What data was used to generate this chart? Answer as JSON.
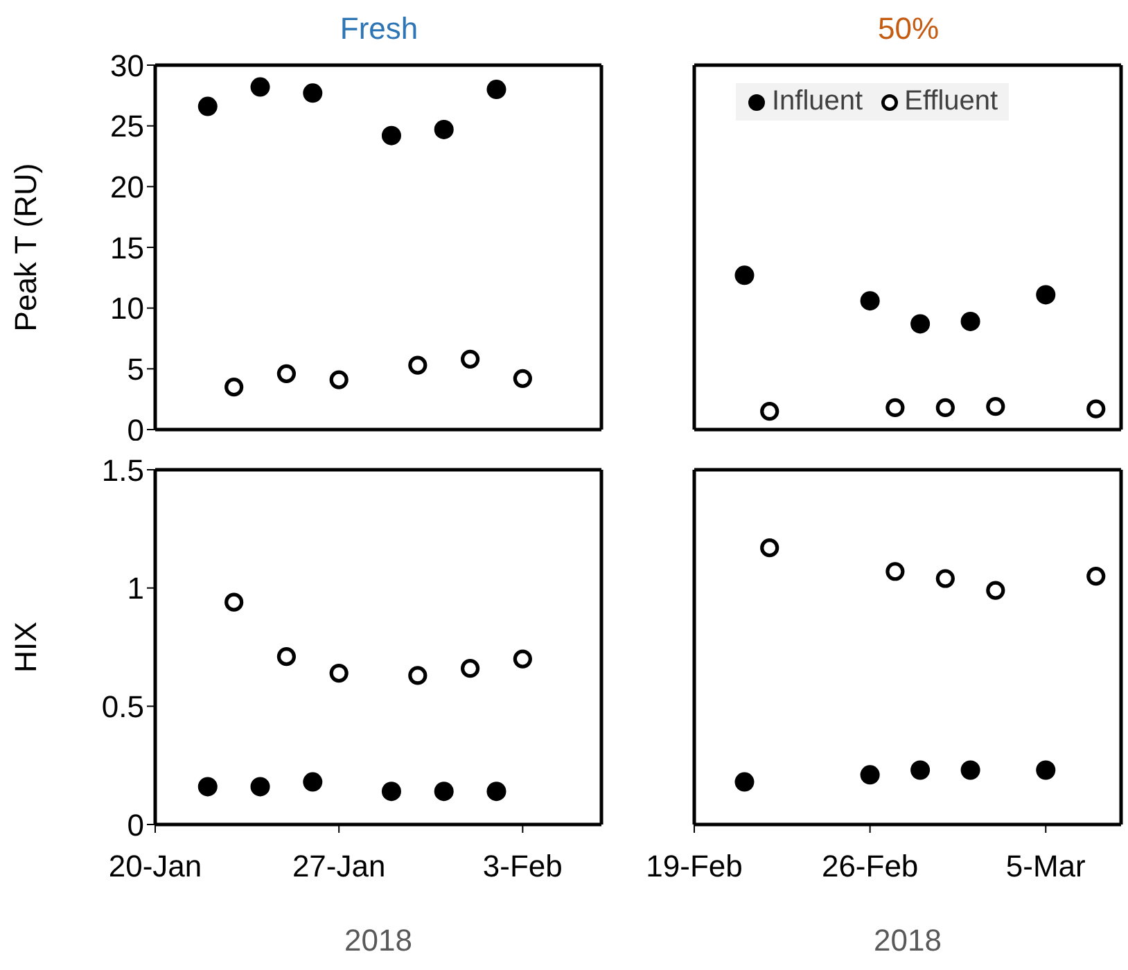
{
  "chart_data": [
    {
      "type": "scatter",
      "title": "Fresh",
      "ylabel": "Peak T (RU)",
      "marker": "circle",
      "tick_labels": "y",
      "xlim": [
        "2018-01-20",
        "2018-02-06"
      ],
      "xticks": [
        {
          "value": "2018-01-20",
          "label": null
        },
        {
          "value": "2018-01-27",
          "label": null
        },
        {
          "value": "2018-02-03",
          "label": null
        }
      ],
      "ylim": [
        0,
        30
      ],
      "yticks": [
        0,
        5,
        10,
        15,
        20,
        25,
        30
      ],
      "series": [
        {
          "color": "#000000",
          "x": [
            "2018-01-22",
            "2018-01-24",
            "2018-01-26",
            "2018-01-29",
            "2018-01-31",
            "2018-02-02"
          ],
          "values": [
            26.6,
            28.2,
            27.7,
            24.2,
            24.7,
            28.0
          ]
        },
        {
          "color": "#000000",
          "x": [
            "2018-01-23",
            "2018-01-25",
            "2018-01-27",
            "2018-01-30",
            "2018-02-01",
            "2018-02-03"
          ],
          "values": [
            3.5,
            4.6,
            4.1,
            5.3,
            5.8,
            4.2
          ]
        }
      ]
    },
    {
      "type": "scatter",
      "title": "50%",
      "marker": "circle",
      "legend": "top",
      "tick_labels": false,
      "xlim": [
        "2018-02-19",
        "2018-03-08"
      ],
      "xticks": [
        {
          "value": "2018-02-19",
          "label": null
        },
        {
          "value": "2018-02-26",
          "label": null
        },
        {
          "value": "2018-03-05",
          "label": null
        }
      ],
      "ylim": [
        0,
        30
      ],
      "yticks": [
        0,
        5,
        10,
        15,
        20,
        25,
        30
      ],
      "series": [
        {
          "name": "Influent",
          "color": "#000000",
          "x": [
            "2018-02-21",
            "2018-02-26",
            "2018-02-28",
            "2018-03-02",
            "2018-03-05"
          ],
          "values": [
            12.7,
            10.6,
            8.7,
            8.9,
            11.1
          ]
        },
        {
          "name": "Effluent",
          "color": "#000000",
          "x": [
            "2018-02-22",
            "2018-02-27",
            "2018-03-01",
            "2018-03-03",
            "2018-03-07"
          ],
          "values": [
            1.5,
            1.8,
            1.8,
            1.9,
            1.7
          ]
        }
      ]
    },
    {
      "type": "scatter",
      "xlabel": "2018",
      "ylabel": "HIX",
      "marker": "circle",
      "xlim": [
        "2018-01-20",
        "2018-02-06"
      ],
      "xticks": [
        {
          "value": "2018-01-20",
          "label": "20-Jan"
        },
        {
          "value": "2018-01-27",
          "label": "27-Jan"
        },
        {
          "value": "2018-02-03",
          "label": "3-Feb"
        }
      ],
      "ylim": [
        0,
        1.5
      ],
      "yticks": [
        0,
        0.5,
        1,
        1.5
      ],
      "series": [
        {
          "color": "#000000",
          "x": [
            "2018-01-22",
            "2018-01-24",
            "2018-01-26",
            "2018-01-29",
            "2018-01-31",
            "2018-02-02"
          ],
          "values": [
            0.16,
            0.16,
            0.18,
            0.14,
            0.14,
            0.14
          ]
        },
        {
          "color": "#000000",
          "x": [
            "2018-01-23",
            "2018-01-25",
            "2018-01-27",
            "2018-01-30",
            "2018-02-01",
            "2018-02-03"
          ],
          "values": [
            0.94,
            0.71,
            0.64,
            0.63,
            0.66,
            0.7
          ]
        }
      ]
    },
    {
      "type": "scatter",
      "xlabel": "2018",
      "marker": "circle",
      "tick_labels": "x",
      "xlim": [
        "2018-02-19",
        "2018-03-08"
      ],
      "xticks": [
        {
          "value": "2018-02-19",
          "label": "19-Feb"
        },
        {
          "value": "2018-02-26",
          "label": "26-Feb"
        },
        {
          "value": "2018-03-05",
          "label": "5-Mar"
        }
      ],
      "ylim": [
        0,
        1.5
      ],
      "yticks": [
        0,
        0.5,
        1,
        1.5
      ],
      "series": [
        {
          "color": "#000000",
          "x": [
            "2018-02-21",
            "2018-02-26",
            "2018-02-28",
            "2018-03-02",
            "2018-03-05"
          ],
          "values": [
            0.18,
            0.21,
            0.23,
            0.23,
            0.23
          ]
        },
        {
          "color": "#000000",
          "x": [
            "2018-02-22",
            "2018-02-27",
            "2018-03-01",
            "2018-03-03",
            "2018-03-07"
          ],
          "values": [
            1.17,
            1.07,
            1.04,
            0.99,
            1.05
          ]
        }
      ]
    }
  ]
}
